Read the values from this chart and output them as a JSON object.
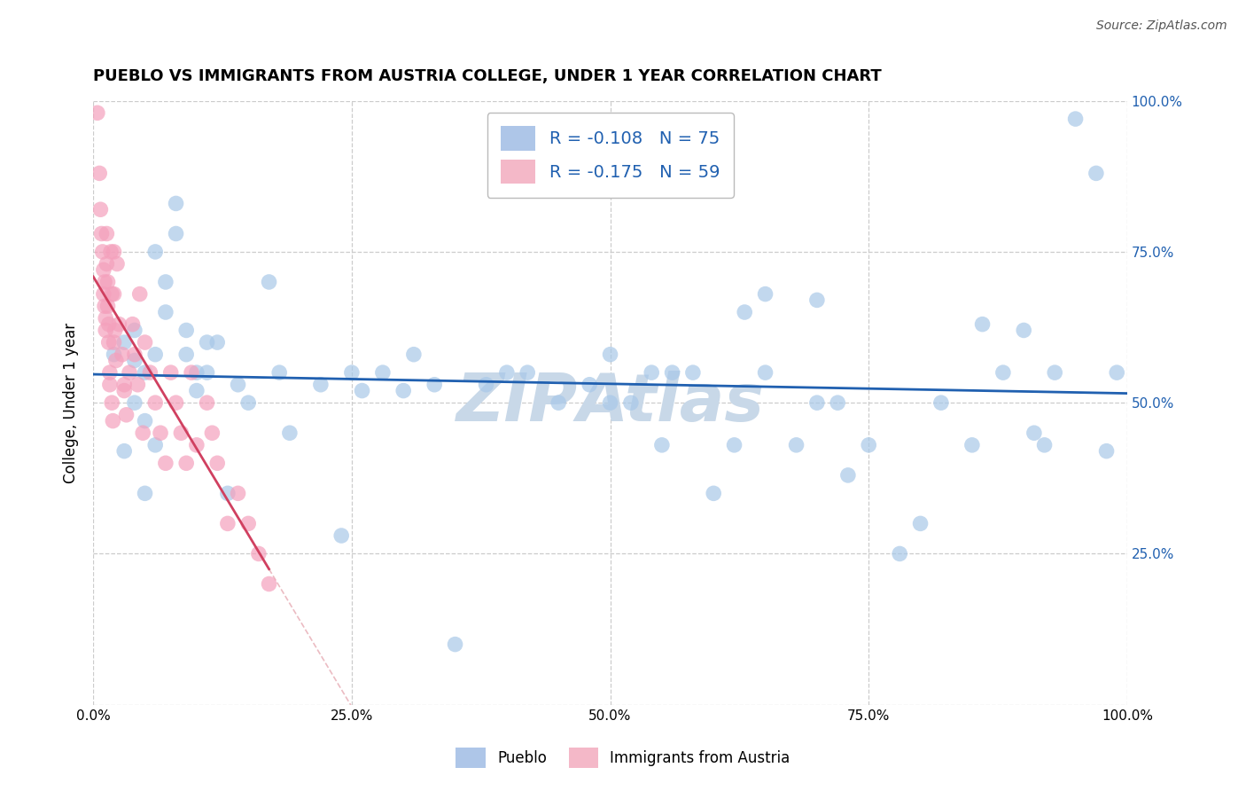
{
  "title": "PUEBLO VS IMMIGRANTS FROM AUSTRIA COLLEGE, UNDER 1 YEAR CORRELATION CHART",
  "source": "Source: ZipAtlas.com",
  "ylabel": "College, Under 1 year",
  "yaxis_ticks": [
    0.0,
    0.25,
    0.5,
    0.75,
    1.0
  ],
  "legend_label_1": "Pueblo",
  "legend_label_2": "Immigrants from Austria",
  "r_blue": -0.108,
  "n_blue": 75,
  "r_pink": -0.175,
  "n_pink": 59,
  "scatter_blue_x": [
    0.02,
    0.03,
    0.04,
    0.04,
    0.05,
    0.05,
    0.06,
    0.07,
    0.08,
    0.09,
    0.1,
    0.11,
    0.12,
    0.13,
    0.14,
    0.15,
    0.17,
    0.18,
    0.19,
    0.22,
    0.24,
    0.25,
    0.26,
    0.28,
    0.3,
    0.31,
    0.33,
    0.35,
    0.38,
    0.4,
    0.42,
    0.45,
    0.48,
    0.5,
    0.5,
    0.52,
    0.54,
    0.55,
    0.56,
    0.58,
    0.6,
    0.62,
    0.63,
    0.65,
    0.65,
    0.68,
    0.7,
    0.7,
    0.72,
    0.73,
    0.75,
    0.78,
    0.8,
    0.82,
    0.85,
    0.86,
    0.88,
    0.9,
    0.91,
    0.92,
    0.93,
    0.95,
    0.97,
    0.98,
    0.99,
    0.06,
    0.07,
    0.08,
    0.03,
    0.04,
    0.05,
    0.06,
    0.09,
    0.1,
    0.11
  ],
  "scatter_blue_y": [
    0.58,
    0.6,
    0.62,
    0.5,
    0.55,
    0.47,
    0.58,
    0.65,
    0.83,
    0.62,
    0.55,
    0.55,
    0.6,
    0.35,
    0.53,
    0.5,
    0.7,
    0.55,
    0.45,
    0.53,
    0.28,
    0.55,
    0.52,
    0.55,
    0.52,
    0.58,
    0.53,
    0.1,
    0.53,
    0.55,
    0.55,
    0.5,
    0.53,
    0.58,
    0.5,
    0.5,
    0.55,
    0.43,
    0.55,
    0.55,
    0.35,
    0.43,
    0.65,
    0.68,
    0.55,
    0.43,
    0.67,
    0.5,
    0.5,
    0.38,
    0.43,
    0.25,
    0.3,
    0.5,
    0.43,
    0.63,
    0.55,
    0.62,
    0.45,
    0.43,
    0.55,
    0.97,
    0.88,
    0.42,
    0.55,
    0.75,
    0.7,
    0.78,
    0.42,
    0.57,
    0.35,
    0.43,
    0.58,
    0.52,
    0.6
  ],
  "scatter_pink_x": [
    0.004,
    0.006,
    0.007,
    0.008,
    0.009,
    0.01,
    0.01,
    0.011,
    0.011,
    0.012,
    0.012,
    0.013,
    0.013,
    0.014,
    0.014,
    0.015,
    0.015,
    0.016,
    0.016,
    0.017,
    0.018,
    0.018,
    0.019,
    0.02,
    0.02,
    0.021,
    0.022,
    0.023,
    0.025,
    0.028,
    0.03,
    0.032,
    0.035,
    0.038,
    0.04,
    0.043,
    0.045,
    0.048,
    0.05,
    0.055,
    0.06,
    0.065,
    0.07,
    0.075,
    0.08,
    0.085,
    0.09,
    0.095,
    0.1,
    0.11,
    0.115,
    0.12,
    0.13,
    0.14,
    0.15,
    0.16,
    0.17,
    0.02,
    0.03
  ],
  "scatter_pink_y": [
    0.98,
    0.88,
    0.82,
    0.78,
    0.75,
    0.72,
    0.68,
    0.7,
    0.66,
    0.64,
    0.62,
    0.78,
    0.73,
    0.7,
    0.66,
    0.63,
    0.6,
    0.55,
    0.53,
    0.75,
    0.68,
    0.5,
    0.47,
    0.75,
    0.68,
    0.62,
    0.57,
    0.73,
    0.63,
    0.58,
    0.53,
    0.48,
    0.55,
    0.63,
    0.58,
    0.53,
    0.68,
    0.45,
    0.6,
    0.55,
    0.5,
    0.45,
    0.4,
    0.55,
    0.5,
    0.45,
    0.4,
    0.55,
    0.43,
    0.5,
    0.45,
    0.4,
    0.3,
    0.35,
    0.3,
    0.25,
    0.2,
    0.6,
    0.52
  ],
  "blue_scatter_color": "#a8c8e8",
  "pink_scatter_color": "#f4a0bc",
  "blue_line_color": "#2060b0",
  "pink_line_color": "#d04060",
  "pink_ext_line_color": "#e8b0b8",
  "grid_color": "#cccccc",
  "watermark_color": "#c8d8e8",
  "legend_blue_patch": "#aec6e8",
  "legend_pink_patch": "#f4b8c8",
  "right_tick_color": "#2060b0",
  "background_color": "#ffffff"
}
